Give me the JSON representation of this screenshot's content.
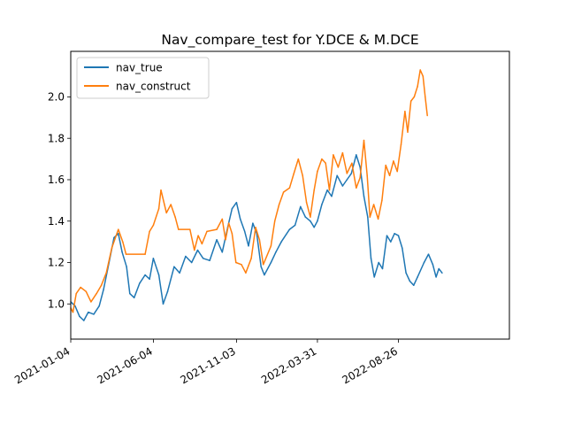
{
  "chart_data": {
    "type": "line",
    "title": "Nav_compare_test for Y.DCE & M.DCE",
    "xlabel": "",
    "ylabel": "",
    "x_start": "2021-01-04",
    "x_end": "2023-03-17",
    "x_ticks": [
      "2021-01-04",
      "2021-06-04",
      "2021-11-03",
      "2022-03-31",
      "2022-08-26"
    ],
    "y_ticks": [
      "1.0",
      "1.2",
      "1.4",
      "1.6",
      "1.8",
      "2.0"
    ],
    "ylim": [
      0.83,
      2.22
    ],
    "grid": false,
    "legend_position": "top-left",
    "series": [
      {
        "name": "nav_true",
        "color": "#1f77b4",
        "points": [
          [
            "2021-01-04",
            1.01
          ],
          [
            "2021-01-12",
            0.99
          ],
          [
            "2021-01-20",
            0.94
          ],
          [
            "2021-01-28",
            0.92
          ],
          [
            "2021-02-05",
            0.96
          ],
          [
            "2021-02-15",
            0.95
          ],
          [
            "2021-02-25",
            0.99
          ],
          [
            "2021-03-05",
            1.07
          ],
          [
            "2021-03-15",
            1.2
          ],
          [
            "2021-03-24",
            1.32
          ],
          [
            "2021-04-01",
            1.34
          ],
          [
            "2021-04-08",
            1.25
          ],
          [
            "2021-04-16",
            1.18
          ],
          [
            "2021-04-22",
            1.05
          ],
          [
            "2021-04-30",
            1.03
          ],
          [
            "2021-05-10",
            1.1
          ],
          [
            "2021-05-20",
            1.14
          ],
          [
            "2021-05-28",
            1.12
          ],
          [
            "2021-06-04",
            1.22
          ],
          [
            "2021-06-14",
            1.14
          ],
          [
            "2021-06-22",
            1.0
          ],
          [
            "2021-06-30",
            1.06
          ],
          [
            "2021-07-12",
            1.18
          ],
          [
            "2021-07-22",
            1.15
          ],
          [
            "2021-08-02",
            1.23
          ],
          [
            "2021-08-13",
            1.2
          ],
          [
            "2021-08-24",
            1.26
          ],
          [
            "2021-09-03",
            1.22
          ],
          [
            "2021-09-15",
            1.21
          ],
          [
            "2021-09-28",
            1.31
          ],
          [
            "2021-10-08",
            1.25
          ],
          [
            "2021-10-18",
            1.37
          ],
          [
            "2021-10-26",
            1.46
          ],
          [
            "2021-11-03",
            1.49
          ],
          [
            "2021-11-10",
            1.41
          ],
          [
            "2021-11-18",
            1.35
          ],
          [
            "2021-11-25",
            1.28
          ],
          [
            "2021-12-03",
            1.39
          ],
          [
            "2021-12-10",
            1.34
          ],
          [
            "2021-12-18",
            1.18
          ],
          [
            "2021-12-24",
            1.14
          ],
          [
            "2022-01-05",
            1.2
          ],
          [
            "2022-01-14",
            1.25
          ],
          [
            "2022-01-24",
            1.3
          ],
          [
            "2022-02-08",
            1.36
          ],
          [
            "2022-02-18",
            1.38
          ],
          [
            "2022-02-28",
            1.47
          ],
          [
            "2022-03-09",
            1.42
          ],
          [
            "2022-03-18",
            1.4
          ],
          [
            "2022-03-25",
            1.37
          ],
          [
            "2022-03-31",
            1.4
          ],
          [
            "2022-04-08",
            1.48
          ],
          [
            "2022-04-18",
            1.55
          ],
          [
            "2022-04-26",
            1.52
          ],
          [
            "2022-05-06",
            1.62
          ],
          [
            "2022-05-16",
            1.57
          ],
          [
            "2022-05-24",
            1.6
          ],
          [
            "2022-06-01",
            1.63
          ],
          [
            "2022-06-10",
            1.72
          ],
          [
            "2022-06-17",
            1.66
          ],
          [
            "2022-06-24",
            1.52
          ],
          [
            "2022-07-01",
            1.42
          ],
          [
            "2022-07-07",
            1.22
          ],
          [
            "2022-07-13",
            1.13
          ],
          [
            "2022-07-21",
            1.2
          ],
          [
            "2022-07-28",
            1.17
          ],
          [
            "2022-08-05",
            1.33
          ],
          [
            "2022-08-12",
            1.3
          ],
          [
            "2022-08-19",
            1.34
          ],
          [
            "2022-08-26",
            1.33
          ],
          [
            "2022-09-02",
            1.27
          ],
          [
            "2022-09-09",
            1.15
          ],
          [
            "2022-09-16",
            1.11
          ],
          [
            "2022-09-23",
            1.09
          ],
          [
            "2022-09-30",
            1.13
          ],
          [
            "2022-10-12",
            1.2
          ],
          [
            "2022-10-20",
            1.24
          ],
          [
            "2022-10-28",
            1.19
          ],
          [
            "2022-11-03",
            1.13
          ],
          [
            "2022-11-08",
            1.17
          ],
          [
            "2022-11-14",
            1.15
          ]
        ]
      },
      {
        "name": "nav_construct",
        "color": "#ff7f0e",
        "points": [
          [
            "2021-01-04",
            0.98
          ],
          [
            "2021-01-08",
            0.96
          ],
          [
            "2021-01-14",
            1.05
          ],
          [
            "2021-01-22",
            1.08
          ],
          [
            "2021-02-01",
            1.06
          ],
          [
            "2021-02-10",
            1.01
          ],
          [
            "2021-02-20",
            1.05
          ],
          [
            "2021-03-01",
            1.09
          ],
          [
            "2021-03-10",
            1.15
          ],
          [
            "2021-03-20",
            1.27
          ],
          [
            "2021-04-01",
            1.36
          ],
          [
            "2021-04-09",
            1.3
          ],
          [
            "2021-04-15",
            1.24
          ],
          [
            "2021-05-20",
            1.24
          ],
          [
            "2021-05-28",
            1.35
          ],
          [
            "2021-06-04",
            1.38
          ],
          [
            "2021-06-14",
            1.46
          ],
          [
            "2021-06-18",
            1.55
          ],
          [
            "2021-06-28",
            1.44
          ],
          [
            "2021-07-06",
            1.48
          ],
          [
            "2021-07-14",
            1.42
          ],
          [
            "2021-07-20",
            1.36
          ],
          [
            "2021-08-10",
            1.36
          ],
          [
            "2021-08-18",
            1.26
          ],
          [
            "2021-08-25",
            1.33
          ],
          [
            "2021-09-01",
            1.29
          ],
          [
            "2021-09-10",
            1.35
          ],
          [
            "2021-09-28",
            1.36
          ],
          [
            "2021-10-08",
            1.41
          ],
          [
            "2021-10-14",
            1.31
          ],
          [
            "2021-10-20",
            1.39
          ],
          [
            "2021-10-26",
            1.34
          ],
          [
            "2021-11-02",
            1.2
          ],
          [
            "2021-11-12",
            1.19
          ],
          [
            "2021-11-20",
            1.15
          ],
          [
            "2021-11-30",
            1.22
          ],
          [
            "2021-12-08",
            1.37
          ],
          [
            "2021-12-15",
            1.31
          ],
          [
            "2021-12-22",
            1.19
          ],
          [
            "2022-01-05",
            1.28
          ],
          [
            "2022-01-12",
            1.4
          ],
          [
            "2022-01-20",
            1.48
          ],
          [
            "2022-01-28",
            1.54
          ],
          [
            "2022-02-08",
            1.56
          ],
          [
            "2022-02-16",
            1.63
          ],
          [
            "2022-02-24",
            1.7
          ],
          [
            "2022-03-04",
            1.62
          ],
          [
            "2022-03-11",
            1.49
          ],
          [
            "2022-03-18",
            1.42
          ],
          [
            "2022-03-25",
            1.55
          ],
          [
            "2022-03-31",
            1.64
          ],
          [
            "2022-04-08",
            1.7
          ],
          [
            "2022-04-15",
            1.68
          ],
          [
            "2022-04-22",
            1.55
          ],
          [
            "2022-04-29",
            1.72
          ],
          [
            "2022-05-08",
            1.66
          ],
          [
            "2022-05-16",
            1.73
          ],
          [
            "2022-05-24",
            1.63
          ],
          [
            "2022-06-02",
            1.68
          ],
          [
            "2022-06-10",
            1.56
          ],
          [
            "2022-06-17",
            1.61
          ],
          [
            "2022-06-24",
            1.79
          ],
          [
            "2022-06-30",
            1.62
          ],
          [
            "2022-07-05",
            1.42
          ],
          [
            "2022-07-12",
            1.48
          ],
          [
            "2022-07-20",
            1.41
          ],
          [
            "2022-07-27",
            1.5
          ],
          [
            "2022-08-03",
            1.67
          ],
          [
            "2022-08-10",
            1.62
          ],
          [
            "2022-08-17",
            1.69
          ],
          [
            "2022-08-24",
            1.64
          ],
          [
            "2022-08-31",
            1.77
          ],
          [
            "2022-09-07",
            1.93
          ],
          [
            "2022-09-12",
            1.83
          ],
          [
            "2022-09-18",
            1.98
          ],
          [
            "2022-09-24",
            2.0
          ],
          [
            "2022-09-30",
            2.05
          ],
          [
            "2022-10-05",
            2.13
          ],
          [
            "2022-10-10",
            2.1
          ],
          [
            "2022-10-14",
            2.0
          ],
          [
            "2022-10-18",
            1.91
          ]
        ]
      }
    ]
  }
}
